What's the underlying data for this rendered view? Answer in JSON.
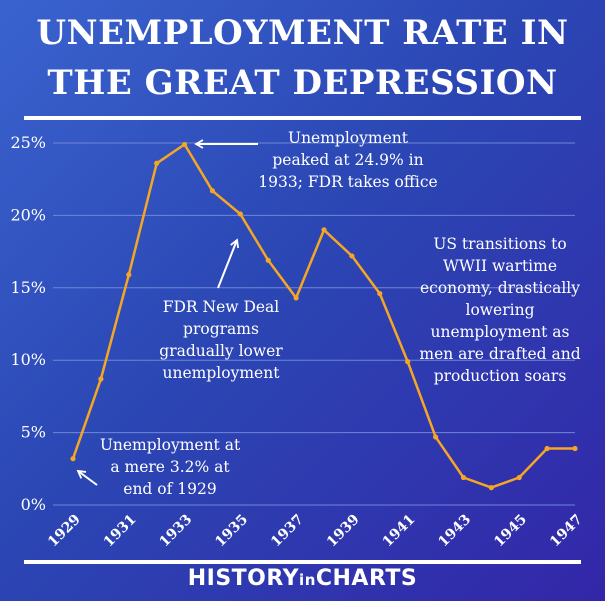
{
  "header": {
    "title_line1": "UNEMPLOYMENT RATE IN",
    "title_line2": "THE GREAT DEPRESSION"
  },
  "footer": {
    "brand_part1": "HISTORY",
    "brand_part2": "in",
    "brand_part3": "CHARTS"
  },
  "colors": {
    "line": "#f5a623",
    "grid": "#6f86d8",
    "text": "#ffffff"
  },
  "chart_data": {
    "type": "line",
    "title": "UNEMPLOYMENT RATE IN THE GREAT DEPRESSION",
    "xlabel": "",
    "ylabel": "",
    "x": [
      1929,
      1930,
      1931,
      1932,
      1933,
      1934,
      1935,
      1936,
      1937,
      1938,
      1939,
      1940,
      1941,
      1942,
      1943,
      1944,
      1945,
      1946,
      1947
    ],
    "values": [
      3.2,
      8.7,
      15.9,
      23.6,
      24.9,
      21.7,
      20.1,
      16.9,
      14.3,
      19.0,
      17.2,
      14.6,
      9.9,
      4.7,
      1.9,
      1.2,
      1.9,
      3.9,
      3.9
    ],
    "ylim": [
      0,
      25
    ],
    "yticks": [
      0,
      5,
      10,
      15,
      20,
      25
    ],
    "ytick_labels": [
      "0%",
      "5%",
      "10%",
      "15%",
      "20%",
      "25%"
    ],
    "xtick_labels": [
      "1929",
      "1931",
      "1933",
      "1935",
      "1937",
      "1939",
      "1941",
      "1943",
      "1945",
      "1947"
    ],
    "grid": true,
    "annotations": [
      "Unemployment\npeaked at 24.9% in\n1933; FDR takes office",
      "FDR New Deal\nprograms\ngradually lower\nunemployment",
      "US transitions to\nWWII wartime\neconomy, drastically\nlowering\nunemployment as\nmen are drafted and\nproduction soars",
      "Unemployment at\na mere 3.2% at\nend of 1929"
    ]
  }
}
